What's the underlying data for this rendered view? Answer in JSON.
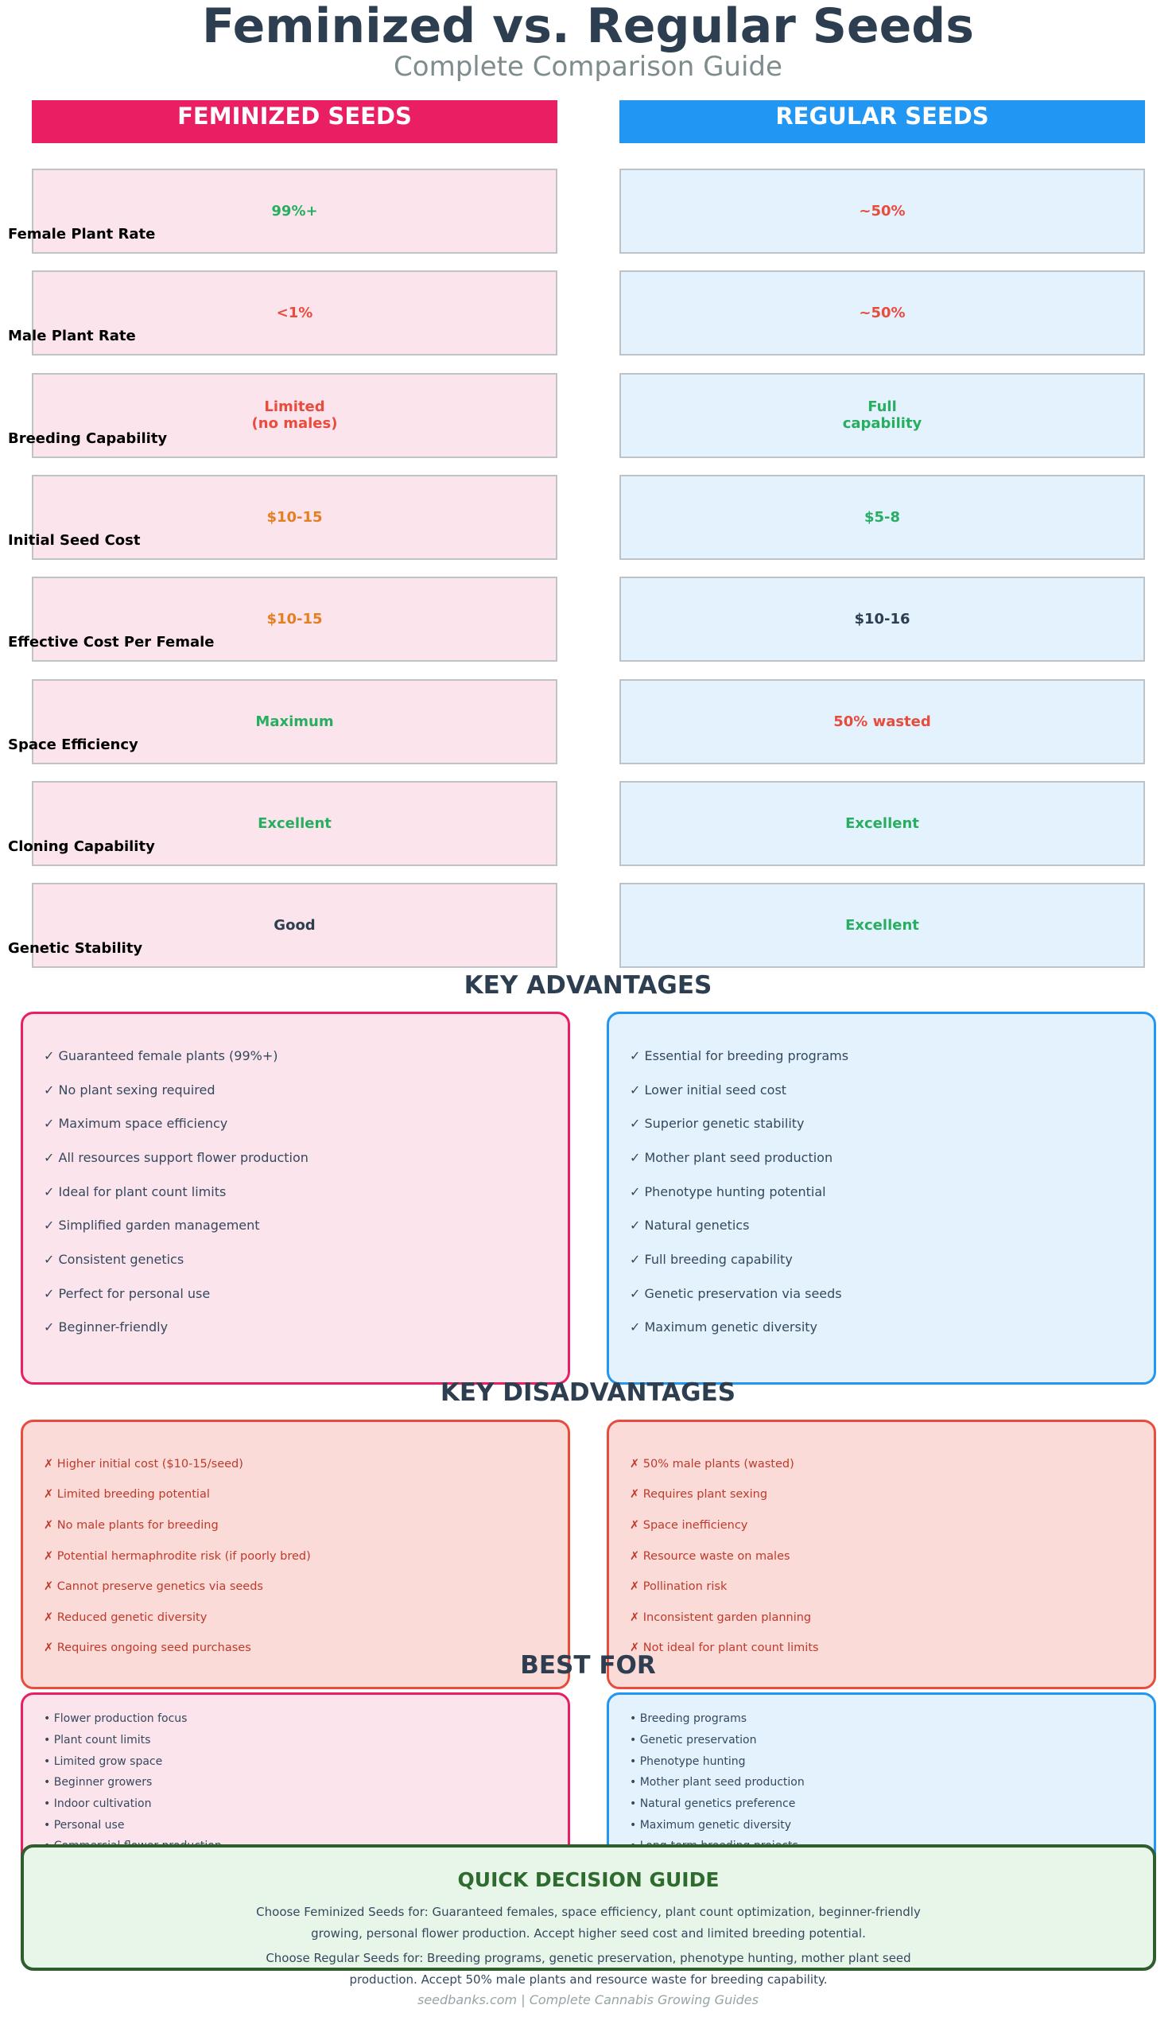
{
  "header": {
    "title": "Feminized vs. Regular Seeds",
    "subtitle": "Complete Comparison Guide"
  },
  "columns": [
    {
      "title": "FEMINIZED SEEDS",
      "color": "#e91e63",
      "fill": "#fce4ec"
    },
    {
      "title": "REGULAR SEEDS",
      "color": "#2196f3",
      "fill": "#e3f2fd"
    }
  ],
  "rows": [
    {
      "label": "Female Plant Rate",
      "values": [
        "99%+",
        "~50%"
      ],
      "colors": [
        "#27ae60",
        "#e74c3c"
      ]
    },
    {
      "label": "Male Plant Rate",
      "values": [
        "<1%",
        "~50%"
      ],
      "colors": [
        "#e74c3c",
        "#e74c3c"
      ]
    },
    {
      "label": "Breeding Capability",
      "values": [
        "Limited\n(no males)",
        "Full\ncapability"
      ],
      "colors": [
        "#e74c3c",
        "#27ae60"
      ]
    },
    {
      "label": "Initial Seed Cost",
      "values": [
        "$10-15",
        "$5-8"
      ],
      "colors": [
        "#e67e22",
        "#27ae60"
      ]
    },
    {
      "label": "Effective Cost Per Female",
      "values": [
        "$10-15",
        "$10-16"
      ],
      "colors": [
        "#e67e22",
        "#2c3e50"
      ]
    },
    {
      "label": "Space Efficiency",
      "values": [
        "Maximum",
        "50% wasted"
      ],
      "colors": [
        "#27ae60",
        "#e74c3c"
      ]
    },
    {
      "label": "Cloning Capability",
      "values": [
        "Excellent",
        "Excellent"
      ],
      "colors": [
        "#27ae60",
        "#27ae60"
      ]
    },
    {
      "label": "Genetic Stability",
      "values": [
        "Good",
        "Excellent"
      ],
      "colors": [
        "#2c3e50",
        "#27ae60"
      ]
    }
  ],
  "advantages": {
    "title": "KEY ADVANTAGES",
    "lists": [
      [
        "✓ Guaranteed female plants (99%+)",
        "✓ No plant sexing required",
        "✓ Maximum space efficiency",
        "✓ All resources support flower production",
        "✓ Ideal for plant count limits",
        "✓ Simplified garden management",
        "✓ Consistent genetics",
        "✓ Perfect for personal use",
        "✓ Beginner-friendly"
      ],
      [
        "✓ Essential for breeding programs",
        "✓ Lower initial seed cost",
        "✓ Superior genetic stability",
        "✓ Mother plant seed production",
        "✓ Phenotype hunting potential",
        "✓ Natural genetics",
        "✓ Full breeding capability",
        "✓ Genetic preservation via seeds",
        "✓ Maximum genetic diversity"
      ]
    ]
  },
  "disadvantages": {
    "title": "KEY DISADVANTAGES",
    "lists": [
      [
        "✗ Higher initial cost ($10-15/seed)",
        "✗ Limited breeding potential",
        "✗ No male plants for breeding",
        "✗ Potential hermaphrodite risk (if poorly bred)",
        "✗ Cannot preserve genetics via seeds",
        "✗ Reduced genetic diversity",
        "✗ Requires ongoing seed purchases"
      ],
      [
        "✗ 50% male plants (wasted)",
        "✗ Requires plant sexing",
        "✗ Space inefficiency",
        "✗ Resource waste on males",
        "✗ Pollination risk",
        "✗ Inconsistent garden planning",
        "✗ Not ideal for plant count limits"
      ]
    ]
  },
  "best_for": {
    "title": "BEST FOR",
    "lists": [
      [
        "• Flower production focus",
        "• Plant count limits",
        "• Limited grow space",
        "• Beginner growers",
        "• Indoor cultivation",
        "• Personal use",
        "• Commercial flower production"
      ],
      [
        "• Breeding programs",
        "• Genetic preservation",
        "• Phenotype hunting",
        "• Mother plant seed production",
        "• Natural genetics preference",
        "• Maximum genetic diversity",
        "• Long-term breeding projects"
      ]
    ]
  },
  "quick_decision": {
    "title": "QUICK DECISION GUIDE",
    "paragraphs": [
      "Choose Feminized Seeds for: Guaranteed females, space efficiency, plant count optimization, beginner-friendly growing, personal flower production. Accept higher seed cost and limited breeding potential.",
      "Choose Regular Seeds for: Breeding programs, genetic preservation, phenotype hunting, mother plant seed production. Accept 50% male plants and resource waste for breeding capability."
    ]
  },
  "footer": "seedbanks.com | Complete Cannabis Growing Guides"
}
